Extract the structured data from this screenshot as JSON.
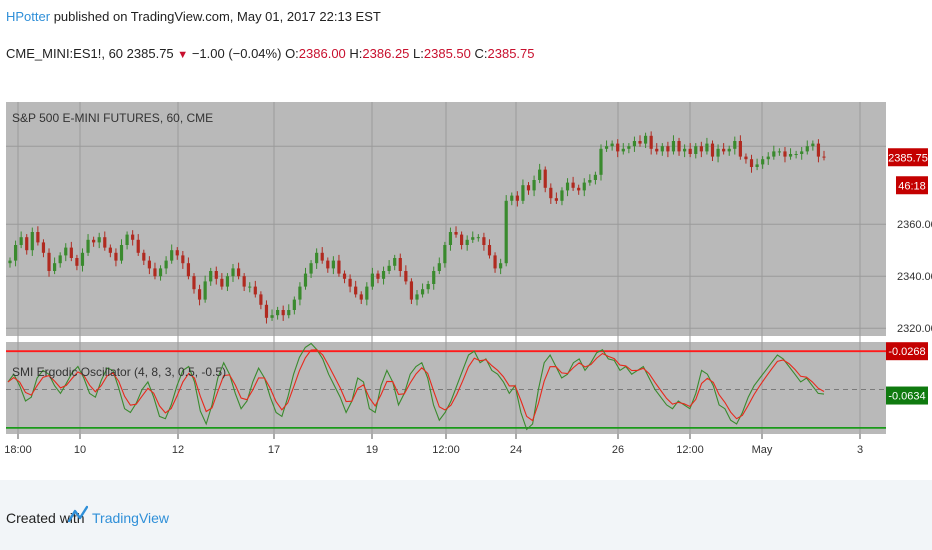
{
  "header": {
    "author": "HPotter",
    "published_text": " published on TradingView.com, May 01, 2017 22:13 EST"
  },
  "quote": {
    "symbol": "CME_MINI:ES1!, 60",
    "last": "2385.75",
    "change": "−1.00 (−0.04%)",
    "open_label": "O:",
    "open": "2386.00",
    "high_label": "H:",
    "high": "2386.25",
    "low_label": "L:",
    "low": "2385.50",
    "close_label": "C:",
    "close": "2385.75"
  },
  "footer": {
    "created_with": "Created with",
    "brand": "TradingView"
  },
  "colors": {
    "panel_bg": "#b9b9b9",
    "grid": "#9a9a9a",
    "up": "#3a8a2e",
    "down": "#b02a20",
    "signal_red": "#e8291c",
    "signal_green": "#1e8c1e",
    "upper_level": "#ff1a1a",
    "lower_level": "#1a9a1a",
    "tag_red": "#c40000",
    "tag_green": "#0f7a0f",
    "brand_blue": "#2f8fd8"
  },
  "chart_data": [
    {
      "type": "candlestick",
      "title": "S&P 500 E-MINI FUTURES, 60, CME",
      "ylim": [
        2317,
        2407
      ],
      "y_ticks": [
        "2320.00",
        "2340.00",
        "2360.00"
      ],
      "last_price_tag": "2385.75",
      "countdown_tag": "46:18",
      "x_ticks": [
        "18:00",
        "10",
        "12",
        "17",
        "19",
        "12:00",
        "24",
        "26",
        "12:00",
        "May",
        "3"
      ],
      "grid": true,
      "series": [
        {
          "name": "close",
          "values": [
            2346,
            2352,
            2355,
            2350,
            2357,
            2353,
            2349,
            2342,
            2345,
            2348,
            2351,
            2347,
            2344,
            2349,
            2354,
            2353,
            2355,
            2351,
            2349,
            2346,
            2352,
            2356,
            2354,
            2349,
            2346,
            2343,
            2340,
            2343,
            2346,
            2350,
            2348,
            2345,
            2340,
            2335,
            2331,
            2338,
            2342,
            2339,
            2336,
            2340,
            2343,
            2340,
            2336,
            2336,
            2333,
            2329,
            2324,
            2325,
            2327,
            2325,
            2327,
            2331,
            2336,
            2341,
            2345,
            2349,
            2346,
            2343,
            2346,
            2341,
            2339,
            2336,
            2333,
            2331,
            2336,
            2341,
            2339,
            2342,
            2344,
            2347,
            2342,
            2338,
            2331,
            2333,
            2335,
            2337,
            2342,
            2345,
            2352,
            2357,
            2356,
            2352,
            2354,
            2355,
            2355,
            2352,
            2348,
            2343,
            2345,
            2369,
            2371,
            2369,
            2375,
            2373,
            2377,
            2381,
            2374,
            2370,
            2369,
            2373,
            2376,
            2374,
            2373,
            2376,
            2377,
            2379,
            2389,
            2390,
            2391,
            2388,
            2389,
            2390,
            2392,
            2391,
            2394,
            2389,
            2388,
            2390,
            2388,
            2392,
            2388,
            2389,
            2387,
            2390,
            2388,
            2391,
            2386,
            2389,
            2388,
            2389,
            2392,
            2386,
            2385,
            2382,
            2383,
            2385,
            2386,
            2388,
            2388,
            2386,
            2387,
            2387,
            2388,
            2390,
            2391,
            2386,
            2385.75
          ]
        }
      ]
    },
    {
      "type": "line",
      "title": "SMI Ergodic Oscillator (4, 8, 3, 0.5, -0.5)",
      "ylim": [
        -0.58,
        0.62
      ],
      "levels": [
        0.5,
        -0.5
      ],
      "value_tags": [
        "-0.0268",
        "-0.0634"
      ],
      "series": [
        {
          "name": "",
          "values": [
            0.1,
            0.2,
            0.05,
            -0.15,
            -0.1,
            0.15,
            0.25,
            0.2,
            0.05,
            -0.05,
            0.08,
            0.22,
            0.3,
            0.15,
            -0.05,
            -0.1,
            0.12,
            0.28,
            0.25,
            0.02,
            -0.25,
            -0.3,
            -0.18,
            0.0,
            0.1,
            -0.1,
            -0.35,
            -0.38,
            -0.2,
            0.05,
            0.25,
            0.3,
            0.1,
            -0.28,
            -0.45,
            -0.2,
            0.15,
            0.35,
            0.2,
            -0.05,
            -0.25,
            -0.15,
            0.1,
            0.28,
            0.15,
            -0.1,
            -0.3,
            -0.35,
            -0.1,
            0.2,
            0.42,
            0.55,
            0.6,
            0.52,
            0.4,
            0.2,
            0.05,
            -0.1,
            -0.3,
            -0.15,
            0.15,
            0.1,
            -0.25,
            -0.3,
            0.05,
            0.25,
            0.1,
            -0.2,
            -0.05,
            0.2,
            0.3,
            0.35,
            0.15,
            -0.2,
            -0.4,
            -0.3,
            -0.15,
            0.05,
            0.25,
            0.45,
            0.5,
            0.35,
            0.4,
            0.25,
            0.2,
            0.1,
            -0.05,
            0.05,
            -0.3,
            -0.52,
            -0.45,
            0.0,
            0.35,
            0.45,
            0.3,
            0.15,
            0.2,
            0.35,
            0.4,
            0.25,
            0.35,
            0.48,
            0.52,
            0.4,
            0.38,
            0.25,
            0.3,
            0.2,
            0.25,
            0.3,
            0.15,
            0.0,
            -0.1,
            -0.2,
            -0.25,
            -0.15,
            -0.2,
            -0.25,
            -0.05,
            0.25,
            0.2,
            0.05,
            -0.2,
            -0.25,
            -0.4,
            -0.45,
            -0.3,
            -0.1,
            0.05,
            0.15,
            0.25,
            0.35,
            0.45,
            0.4,
            0.3,
            0.2,
            0.1,
            0.15,
            0.05,
            -0.05,
            -0.06
          ]
        }
      ]
    }
  ]
}
